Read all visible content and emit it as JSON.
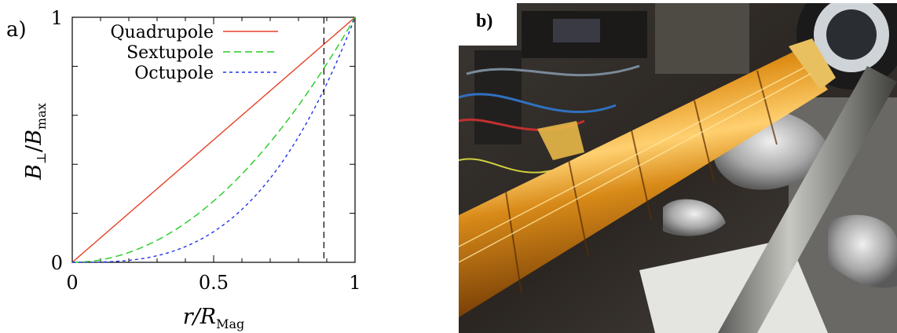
{
  "chart_data": {
    "type": "line",
    "panel_label": "a)",
    "xlabel": "r/R",
    "xlabel_sub": "Mag",
    "ylabel": "B",
    "ylabel_perp": "⊥",
    "ylabel_sep": "/",
    "ylabel_den": "B",
    "ylabel_den_sub": "max",
    "xlim": [
      0,
      1
    ],
    "ylim": [
      0,
      1
    ],
    "x_ticks": [
      "0",
      "0.5",
      "1"
    ],
    "y_ticks": [
      "0",
      "1"
    ],
    "grid": false,
    "legend_position": "top-left",
    "series": [
      {
        "name": "Quadrupole",
        "exponent": 1,
        "color": "#e8402a",
        "dash": "solid"
      },
      {
        "name": "Sextupole",
        "exponent": 2,
        "color": "#22cc22",
        "dash": "long-dash"
      },
      {
        "name": "Octupole",
        "exponent": 3,
        "color": "#2233ee",
        "dash": "short-dash"
      }
    ],
    "vertical_marker_x": 0.89,
    "vertical_marker_color": "#000000"
  },
  "photo": {
    "panel_label": "b)",
    "subject": "kapton-wrapped-magnet-tube"
  }
}
